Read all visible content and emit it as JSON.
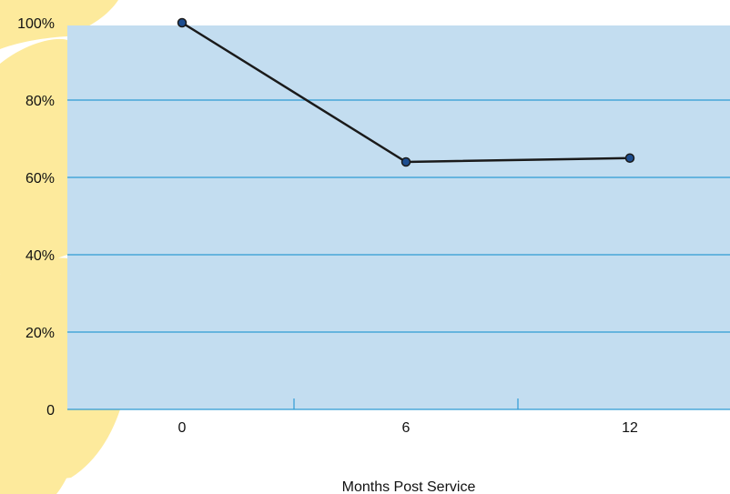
{
  "chart_data": {
    "type": "line",
    "title": "",
    "xlabel": "Months Post Service",
    "ylabel": "",
    "x": [
      0,
      6,
      12
    ],
    "x_tick_labels": [
      "0",
      "6",
      "12"
    ],
    "y_tick_labels": [
      "0",
      "20%",
      "40%",
      "60%",
      "80%",
      "100%"
    ],
    "ylim": [
      0,
      100
    ],
    "grid": "horizontal",
    "series": [
      {
        "values": [
          100,
          64,
          65
        ]
      }
    ]
  },
  "colors": {
    "plot_background": "#c3ddf0",
    "gridline": "#2f9bd4",
    "line": "#1a1a1a",
    "marker_fill": "#1d4d8f",
    "decor_yellow": "#fdea9c"
  }
}
